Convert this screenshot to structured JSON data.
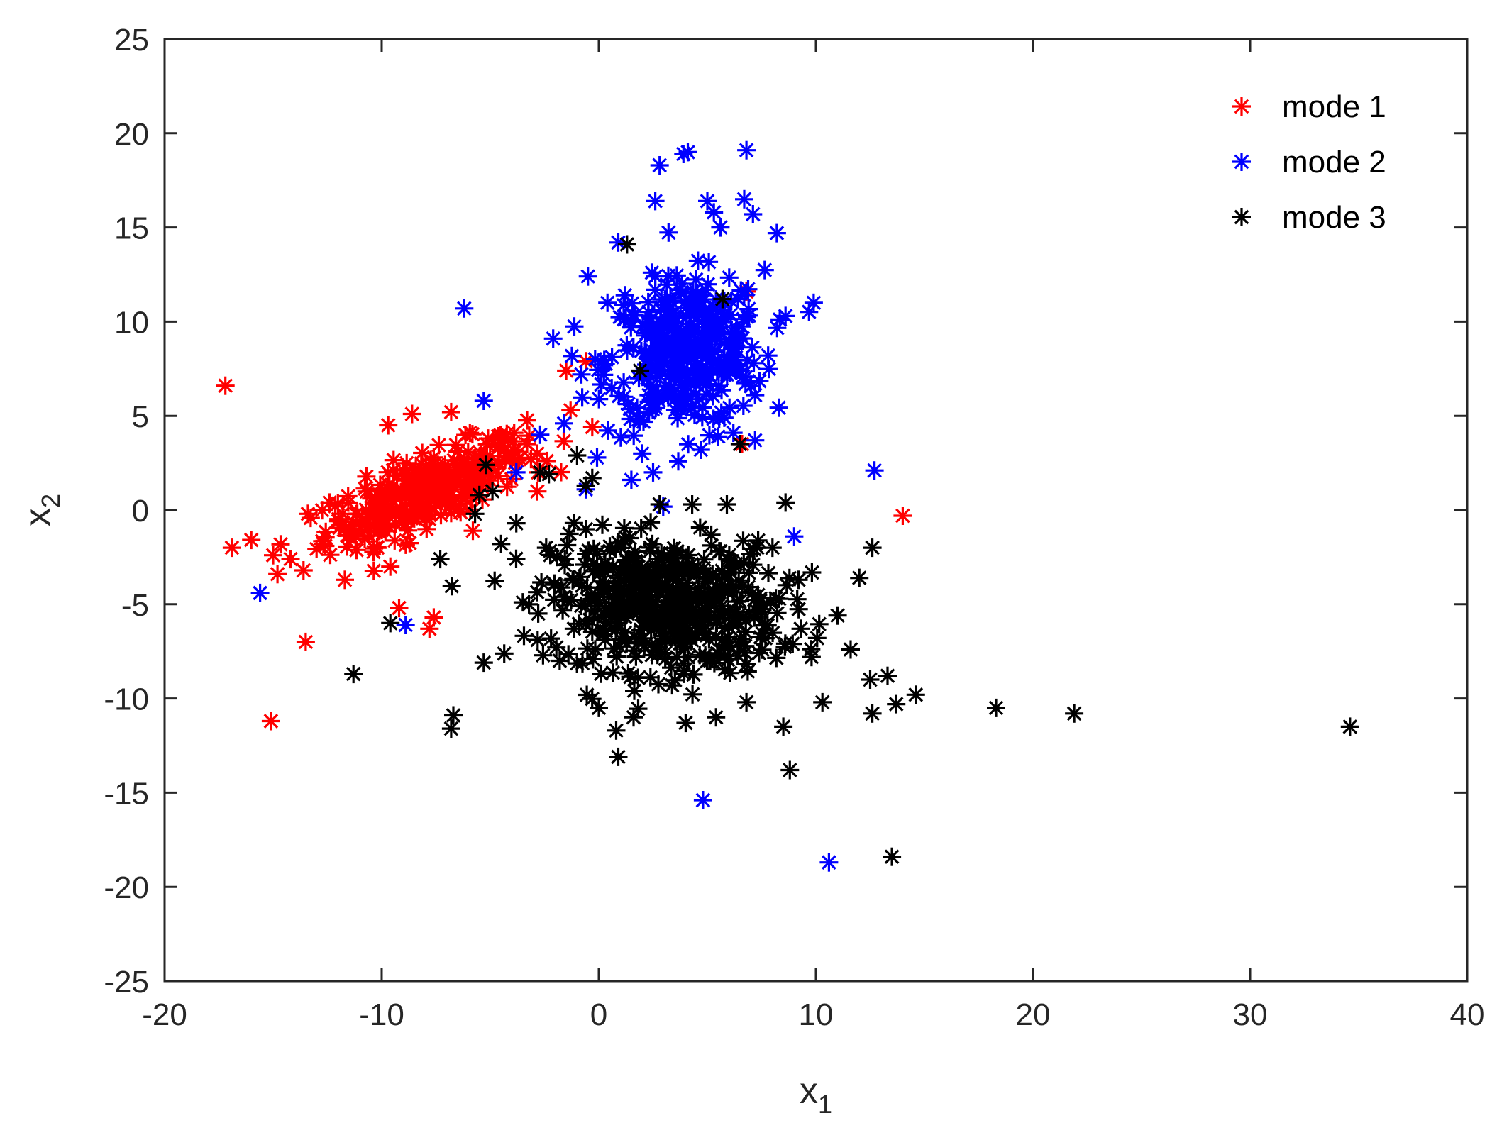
{
  "chart_data": {
    "type": "scatter",
    "title": "",
    "xlabel": "x",
    "xlabel_sub": "1",
    "ylabel": "x",
    "ylabel_sub": "2",
    "xlim": [
      -20,
      40
    ],
    "ylim": [
      -25,
      25
    ],
    "xticks": [
      -20,
      -10,
      0,
      10,
      20,
      30,
      40
    ],
    "yticks": [
      -25,
      -20,
      -15,
      -10,
      -5,
      0,
      5,
      10,
      15,
      20,
      25
    ],
    "xtick_labels": [
      "-20",
      "-10",
      "0",
      "10",
      "20",
      "30",
      "40"
    ],
    "ytick_labels": [
      "-25",
      "-20",
      "-15",
      "-10",
      "-5",
      "0",
      "5",
      "10",
      "15",
      "20",
      "25"
    ],
    "grid": false,
    "marker": "asterisk",
    "legend_position": "top-right",
    "series": [
      {
        "name": "mode 1",
        "color": "#ff0000",
        "cluster": {
          "center": [
            -8,
            1
          ],
          "spread": [
            2.3,
            1.4
          ],
          "corr": 0.75,
          "count": 320
        },
        "points": [
          [
            -17.2,
            6.6
          ],
          [
            -16.9,
            -2.0
          ],
          [
            -15.1,
            -11.2
          ],
          [
            -15.0,
            -2.4
          ],
          [
            -14.8,
            -3.4
          ],
          [
            -14.2,
            -2.6
          ],
          [
            -13.6,
            -3.2
          ],
          [
            -13.5,
            -7.0
          ],
          [
            -13.4,
            -0.2
          ],
          [
            -12.6,
            -1.9
          ],
          [
            -12.4,
            0.4
          ],
          [
            -11.7,
            -3.7
          ],
          [
            -10.2,
            -2.0
          ],
          [
            -9.7,
            4.5
          ],
          [
            -9.6,
            -3.0
          ],
          [
            -9.2,
            -5.2
          ],
          [
            -8.6,
            5.1
          ],
          [
            -7.8,
            -6.3
          ],
          [
            -7.6,
            -5.7
          ],
          [
            -6.8,
            5.2
          ],
          [
            -5.8,
            -1.1
          ],
          [
            -5.1,
            3.8
          ],
          [
            -4.6,
            2.5
          ],
          [
            -3.9,
            4.1
          ],
          [
            -3.3,
            3.5
          ],
          [
            -2.8,
            2.0
          ],
          [
            -2.4,
            2.6
          ],
          [
            -1.5,
            7.4
          ],
          [
            -1.3,
            5.3
          ],
          [
            -0.6,
            7.9
          ],
          [
            -0.3,
            4.4
          ],
          [
            6.8,
            11.6
          ],
          [
            6.6,
            3.5
          ],
          [
            14.0,
            -0.3
          ]
        ]
      },
      {
        "name": "mode 2",
        "color": "#0000ff",
        "cluster": {
          "center": [
            4,
            8.3
          ],
          "spread": [
            1.8,
            2.0
          ],
          "corr": 0.1,
          "count": 380
        },
        "points": [
          [
            -15.6,
            -4.4
          ],
          [
            -8.9,
            -6.1
          ],
          [
            -6.2,
            10.7
          ],
          [
            -5.3,
            5.8
          ],
          [
            -3.8,
            2.0
          ],
          [
            -2.7,
            4.0
          ],
          [
            -2.1,
            9.1
          ],
          [
            -1.6,
            4.6
          ],
          [
            -0.8,
            7.2
          ],
          [
            -0.6,
            1.1
          ],
          [
            -0.5,
            12.4
          ],
          [
            0.4,
            11.0
          ],
          [
            0.9,
            14.2
          ],
          [
            1.5,
            1.6
          ],
          [
            1.2,
            11.4
          ],
          [
            2.0,
            3.0
          ],
          [
            2.5,
            2.0
          ],
          [
            2.6,
            12.4
          ],
          [
            2.6,
            16.4
          ],
          [
            2.8,
            18.3
          ],
          [
            3.9,
            18.9
          ],
          [
            4.1,
            19.0
          ],
          [
            4.7,
            3.2
          ],
          [
            4.8,
            -15.4
          ],
          [
            5.0,
            16.4
          ],
          [
            5.3,
            15.8
          ],
          [
            5.5,
            3.9
          ],
          [
            5.6,
            15.0
          ],
          [
            6.2,
            4.1
          ],
          [
            6.5,
            7.4
          ],
          [
            6.7,
            16.5
          ],
          [
            6.8,
            19.1
          ],
          [
            7.1,
            15.7
          ],
          [
            7.2,
            6.1
          ],
          [
            7.2,
            3.7
          ],
          [
            7.8,
            8.2
          ],
          [
            8.2,
            14.7
          ],
          [
            8.6,
            10.3
          ],
          [
            9.0,
            -1.4
          ],
          [
            9.9,
            11.0
          ],
          [
            10.6,
            -18.7
          ],
          [
            12.7,
            2.1
          ]
        ]
      },
      {
        "name": "mode 3",
        "color": "#000000",
        "cluster": {
          "center": [
            3,
            -5
          ],
          "spread": [
            2.6,
            1.8
          ],
          "corr": -0.1,
          "count": 520
        },
        "points": [
          [
            -11.3,
            -8.7
          ],
          [
            -9.6,
            -6.0
          ],
          [
            -7.3,
            -2.6
          ],
          [
            -6.8,
            -11.6
          ],
          [
            -6.7,
            -10.9
          ],
          [
            -5.7,
            -0.2
          ],
          [
            -5.5,
            0.8
          ],
          [
            -5.3,
            -8.1
          ],
          [
            -5.2,
            2.4
          ],
          [
            -4.9,
            1.0
          ],
          [
            -4.5,
            -1.8
          ],
          [
            -3.8,
            -0.7
          ],
          [
            -3.5,
            -4.9
          ],
          [
            -2.7,
            2.0
          ],
          [
            -2.3,
            1.9
          ],
          [
            -1.8,
            -8.0
          ],
          [
            -1.0,
            2.9
          ],
          [
            -0.6,
            1.3
          ],
          [
            -0.3,
            1.7
          ],
          [
            0.0,
            -10.5
          ],
          [
            0.8,
            -11.7
          ],
          [
            0.9,
            -13.1
          ],
          [
            1.3,
            14.1
          ],
          [
            1.6,
            -11.0
          ],
          [
            1.9,
            7.4
          ],
          [
            2.8,
            0.3
          ],
          [
            4.0,
            -11.3
          ],
          [
            4.3,
            0.3
          ],
          [
            5.4,
            -11.0
          ],
          [
            5.7,
            11.2
          ],
          [
            5.9,
            0.3
          ],
          [
            6.5,
            3.5
          ],
          [
            6.8,
            -10.2
          ],
          [
            7.3,
            -2.0
          ],
          [
            8.0,
            -2.0
          ],
          [
            8.5,
            -11.5
          ],
          [
            8.6,
            0.4
          ],
          [
            8.8,
            -13.8
          ],
          [
            9.2,
            -3.7
          ],
          [
            9.3,
            -6.3
          ],
          [
            9.8,
            -7.8
          ],
          [
            10.3,
            -10.2
          ],
          [
            11.0,
            -5.6
          ],
          [
            11.6,
            -7.4
          ],
          [
            12.0,
            -3.6
          ],
          [
            12.5,
            -9.0
          ],
          [
            12.6,
            -2.0
          ],
          [
            12.6,
            -10.8
          ],
          [
            13.3,
            -8.8
          ],
          [
            13.5,
            -18.4
          ],
          [
            13.7,
            -10.3
          ],
          [
            14.6,
            -9.8
          ],
          [
            18.3,
            -10.5
          ],
          [
            21.9,
            -10.8
          ],
          [
            34.6,
            -11.5
          ]
        ]
      }
    ]
  }
}
